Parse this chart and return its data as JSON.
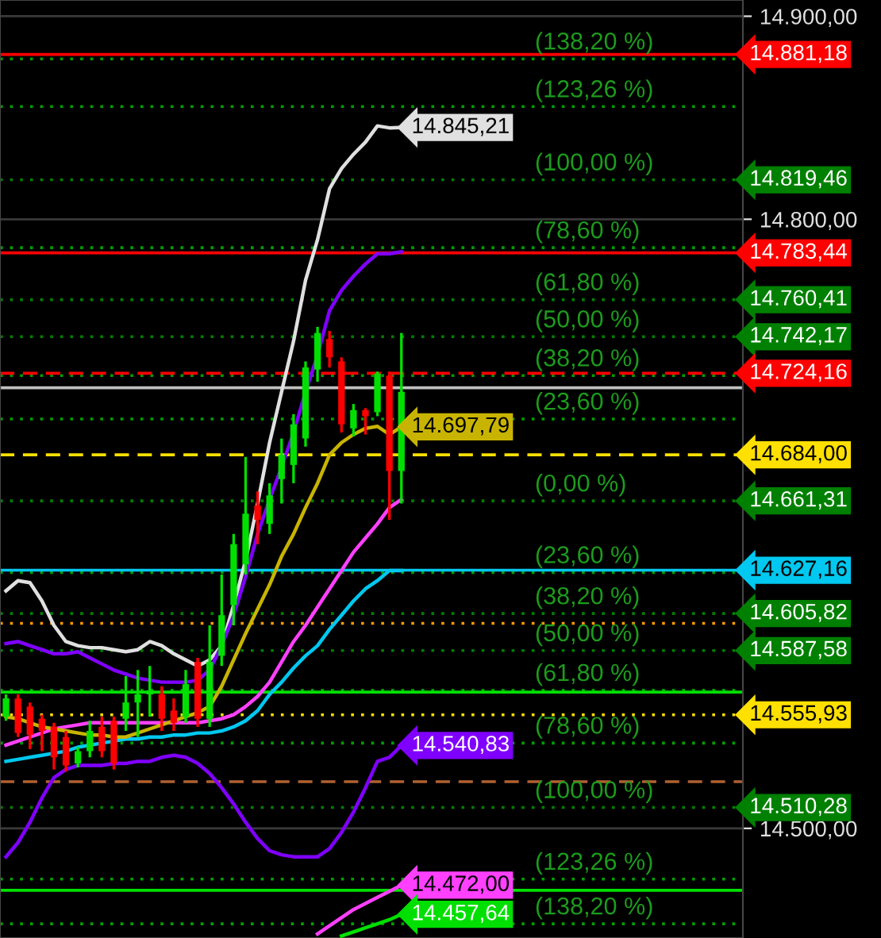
{
  "chart_data": {
    "type": "candlestick",
    "categories": [
      null,
      null,
      null,
      null,
      null,
      null,
      null,
      null,
      null,
      null,
      null,
      null,
      null,
      null,
      null,
      null,
      null,
      null,
      null,
      null,
      null,
      null,
      null,
      null,
      null,
      null,
      null,
      null,
      null,
      null,
      null,
      null,
      null,
      null,
      null,
      null,
      null,
      null,
      null,
      null,
      null,
      null,
      null,
      null,
      null,
      null,
      null,
      null,
      null,
      null,
      null,
      null,
      null,
      null,
      null,
      null,
      null,
      null,
      null,
      null,
      null,
      null
    ],
    "ohlc": [
      [
        14555,
        14566,
        14553,
        14564
      ],
      [
        14564,
        14566,
        14545,
        14547
      ],
      [
        14560,
        14562,
        14539,
        14546
      ],
      [
        14554,
        14556,
        14538,
        14548
      ],
      [
        14550,
        14552,
        14529,
        14535
      ],
      [
        14545,
        14548,
        14528,
        14531
      ],
      [
        14532,
        14540,
        14530,
        14538
      ],
      [
        14538,
        14553,
        14535,
        14548
      ],
      [
        14550,
        14555,
        14535,
        14538
      ],
      [
        14553,
        14555,
        14529,
        14532
      ],
      [
        14554,
        14575,
        14548,
        14562
      ],
      [
        14562,
        14578,
        14545,
        14566
      ],
      [
        14566,
        14580,
        14555,
        14568
      ],
      [
        14566,
        14570,
        14548,
        14554
      ],
      [
        14558,
        14564,
        14548,
        14552
      ],
      [
        14555,
        14578,
        14552,
        14571
      ],
      [
        14582,
        14584,
        14550,
        14554
      ],
      [
        14554,
        14600,
        14550,
        14582
      ],
      [
        14585,
        14625,
        14580,
        14605
      ],
      [
        14610,
        14645,
        14600,
        14640
      ],
      [
        14630,
        14683,
        14625,
        14655
      ],
      [
        14659,
        14666,
        14640,
        14652
      ],
      [
        14650,
        14670,
        14645,
        14664
      ],
      [
        14672,
        14692,
        14660,
        14684
      ],
      [
        14679,
        14704,
        14670,
        14699
      ],
      [
        14692,
        14730,
        14688,
        14727
      ],
      [
        14726,
        14747,
        14720,
        14744
      ],
      [
        14741,
        14745,
        14727,
        14732
      ],
      [
        14730,
        14732,
        14695,
        14699
      ],
      [
        14697,
        14709,
        14693,
        14706
      ],
      [
        14706,
        14707,
        14694,
        14703
      ],
      [
        14705,
        14725,
        14703,
        14724
      ],
      [
        14723,
        14725,
        14652,
        14676
      ],
      [
        14676,
        14744,
        14660,
        14715
      ],
      null,
      null,
      null,
      null,
      null,
      null,
      null,
      null,
      null,
      null,
      null,
      null,
      null,
      null,
      null,
      null,
      null,
      null,
      null,
      null,
      null,
      null,
      null,
      null,
      null,
      null,
      null,
      null
    ],
    "colors": [
      "#00e000",
      "#ff0000",
      "#ff0000",
      "#ff0000",
      "#ff0000",
      "#ff0000",
      "#00e000",
      "#00e000",
      "#ff0000",
      "#ff0000",
      "#00e000",
      "#00e000",
      "#00e000",
      "#ff0000",
      "#ff0000",
      "#00e000",
      "#ff0000",
      "#00e000",
      "#00e000",
      "#00e000",
      "#00e000",
      "#ff0000",
      "#00e000",
      "#00e000",
      "#00e000",
      "#00e000",
      "#00e000",
      "#ff0000",
      "#ff0000",
      "#00e000",
      "#ff0000",
      "#00e000",
      "#ff0000",
      "#00e000",
      null,
      null,
      null,
      null,
      null,
      null,
      null,
      null,
      null,
      null,
      null,
      null,
      null,
      null,
      null,
      null,
      null,
      null,
      null,
      null,
      null,
      null,
      null,
      null,
      null,
      null,
      null,
      null
    ],
    "series": [
      {
        "type": "line",
        "color": "#e0e0e0",
        "values": [
          14617,
          14622,
          14621,
          14612,
          14600,
          14592,
          14590,
          14589,
          14589,
          14588,
          14587,
          14588,
          14592,
          14590,
          14586,
          14583,
          14580,
          14583,
          14590,
          14610,
          14632,
          14660,
          14690,
          14715,
          14740,
          14770,
          14790,
          14815,
          14825,
          14832,
          14838,
          14846,
          14845,
          14845.21,
          null,
          null,
          null,
          null,
          null,
          null,
          null,
          null,
          null,
          null,
          null,
          null,
          null,
          null,
          null,
          null,
          null,
          null,
          null,
          null,
          null,
          null,
          null,
          null,
          null,
          null,
          null,
          null
        ],
        "value_labels": [
          null,
          null,
          null,
          null,
          null,
          null,
          null,
          null,
          null,
          null,
          null,
          null,
          null,
          null,
          null,
          null,
          null,
          null,
          null,
          null,
          null,
          null,
          null,
          null,
          null,
          null,
          null,
          null,
          null,
          null,
          null,
          null,
          null,
          "14.845,21",
          null,
          null,
          null,
          null,
          null,
          null,
          null,
          null,
          null,
          null,
          null,
          null,
          null,
          null,
          null,
          null,
          null,
          null,
          null,
          null,
          null,
          null,
          null,
          null,
          null,
          null,
          null,
          null
        ]
      },
      {
        "type": "line",
        "color": "#8000ff",
        "values": [
          14591,
          14592,
          14590,
          14588,
          14586,
          14586,
          14587,
          14584,
          14581,
          14578,
          14576,
          14574,
          14573,
          14572,
          14572,
          14572,
          14573,
          14578,
          14590,
          14605,
          14624,
          14645,
          14662,
          14678,
          14695,
          14715,
          14733,
          14755,
          14765,
          14772,
          14778,
          14783,
          14783,
          14784,
          null,
          null,
          null,
          null,
          null,
          null,
          null,
          null,
          null,
          null,
          null,
          null,
          null,
          null,
          null,
          null,
          null,
          null,
          null,
          null,
          null,
          null,
          null,
          null,
          null,
          null,
          null,
          null
        ]
      },
      {
        "type": "line",
        "color": "#8000ff",
        "values": [
          14486,
          14493,
          14503,
          14515,
          14525,
          14529,
          14531,
          14531,
          14531,
          14532,
          14532,
          14533,
          14533,
          14535,
          14536,
          14535,
          14532,
          14527,
          14520,
          14512,
          14503,
          14495,
          14489,
          14487,
          14486,
          14486,
          14486,
          14490,
          14498,
          14508,
          14520,
          14533,
          14535,
          14540.83,
          null,
          null,
          null,
          null,
          null,
          null,
          null,
          null,
          null,
          null,
          null,
          null,
          null,
          null,
          null,
          null,
          null,
          null,
          null,
          null,
          null,
          null,
          null,
          null,
          null,
          null,
          null,
          null
        ],
        "value_labels": [
          null,
          null,
          null,
          null,
          null,
          null,
          null,
          null,
          null,
          null,
          null,
          null,
          null,
          null,
          null,
          null,
          null,
          null,
          null,
          null,
          null,
          null,
          null,
          null,
          null,
          null,
          null,
          null,
          null,
          null,
          null,
          null,
          null,
          "14.540,83",
          null,
          null,
          null,
          null,
          null,
          null,
          null,
          null,
          null,
          null,
          null,
          null,
          null,
          null,
          null,
          null,
          null,
          null,
          null,
          null,
          null,
          null,
          null,
          null,
          null,
          null,
          null,
          null
        ]
      },
      {
        "type": "line",
        "color": "#00c8f0",
        "values": [
          14533,
          14534,
          14535,
          14536,
          14537,
          14538,
          14540,
          14541,
          14542,
          14543,
          14544,
          14544,
          14545,
          14545,
          14546,
          14546,
          14547,
          14547,
          14548,
          14550,
          14553,
          14558,
          14566,
          14572,
          14579,
          14585,
          14590,
          14598,
          14605,
          14612,
          14618,
          14622,
          14627,
          14627,
          null,
          null,
          null,
          null,
          null,
          null,
          null,
          null,
          null,
          null,
          null,
          null,
          null,
          null,
          null,
          null,
          null,
          null,
          null,
          null,
          null,
          null,
          null,
          null,
          null,
          null,
          null,
          null
        ]
      },
      {
        "type": "line",
        "color": "#ff40ff",
        "values": [
          14541,
          14543,
          14545,
          14547,
          14549,
          14550,
          14551,
          14552,
          14552,
          14552,
          14552,
          14552,
          14552,
          14552,
          14552,
          14552,
          14552,
          14553,
          14554,
          14556,
          14560,
          14565,
          14572,
          14582,
          14592,
          14600,
          14609,
          14618,
          14627,
          14636,
          14643,
          14650,
          14658,
          14662,
          null,
          null,
          null,
          null,
          null,
          null,
          null,
          null,
          null,
          null,
          null,
          null,
          null,
          null,
          null,
          null,
          null,
          null,
          null,
          null,
          null,
          null,
          null,
          null,
          null,
          null,
          null,
          null
        ]
      },
      {
        "type": "line",
        "color": "#c8b400",
        "values": [
          14555,
          14554,
          14552,
          14550,
          14549,
          14548,
          14547,
          14546,
          14546,
          14545,
          14545,
          14547,
          14549,
          14551,
          14553,
          14555,
          14557,
          14560,
          14570,
          14583,
          14596,
          14608,
          14620,
          14634,
          14645,
          14658,
          14670,
          14684,
          14690,
          14694,
          14697,
          14698,
          14694,
          14697.79,
          null,
          null,
          null,
          null,
          null,
          null,
          null,
          null,
          null,
          null,
          null,
          null,
          null,
          null,
          null,
          null,
          null,
          null,
          null,
          null,
          null,
          null,
          null,
          null,
          null,
          null,
          null,
          null
        ],
        "value_labels": [
          null,
          null,
          null,
          null,
          null,
          null,
          null,
          null,
          null,
          null,
          null,
          null,
          null,
          null,
          null,
          null,
          null,
          null,
          null,
          null,
          null,
          null,
          null,
          null,
          null,
          null,
          null,
          null,
          null,
          null,
          null,
          null,
          null,
          "14.697,79",
          null,
          null,
          null,
          null,
          null,
          null,
          null,
          null,
          null,
          null,
          null,
          null,
          null,
          null,
          null,
          null,
          null,
          null,
          null,
          null,
          null,
          null,
          null,
          null,
          null,
          null,
          null,
          null
        ]
      },
      {
        "type": "line",
        "color": "#ff40ff",
        "values": [
          null,
          null,
          null,
          null,
          null,
          null,
          null,
          null,
          null,
          null,
          null,
          null,
          null,
          null,
          null,
          null,
          null,
          null,
          null,
          null,
          null,
          null,
          null,
          null,
          null,
          null,
          14448,
          14452,
          14456,
          14460,
          14463,
          14466,
          14469,
          14472,
          null,
          null,
          null,
          null,
          null,
          null,
          null,
          null,
          null,
          null,
          null,
          null,
          null,
          null,
          null,
          null,
          null,
          null,
          null,
          null,
          null,
          null,
          null,
          null,
          null,
          null,
          null,
          null
        ],
        "value_labels": [
          null,
          null,
          null,
          null,
          null,
          null,
          null,
          null,
          null,
          null,
          null,
          null,
          null,
          null,
          null,
          null,
          null,
          null,
          null,
          null,
          null,
          null,
          null,
          null,
          null,
          null,
          null,
          null,
          null,
          null,
          null,
          null,
          null,
          "14.472,00",
          null,
          null,
          null,
          null,
          null,
          null,
          null,
          null,
          null,
          null,
          null,
          null,
          null,
          null,
          null,
          null,
          null,
          null,
          null,
          null,
          null,
          null,
          null,
          null,
          null,
          null,
          null,
          null
        ]
      },
      {
        "type": "line",
        "color": "#00e000",
        "values": [
          null,
          null,
          null,
          null,
          null,
          null,
          null,
          null,
          null,
          null,
          null,
          null,
          null,
          null,
          null,
          null,
          null,
          null,
          null,
          null,
          null,
          null,
          null,
          null,
          null,
          null,
          null,
          null,
          14447,
          14449,
          14451,
          14453,
          14455,
          14457.64,
          null,
          null,
          null,
          null,
          null,
          null,
          null,
          null,
          null,
          null,
          null,
          null,
          null,
          null,
          null,
          null,
          null,
          null,
          null,
          null,
          null,
          null,
          null,
          null,
          null,
          null,
          null,
          null
        ],
        "value_labels": [
          null,
          null,
          null,
          null,
          null,
          null,
          null,
          null,
          null,
          null,
          null,
          null,
          null,
          null,
          null,
          null,
          null,
          null,
          null,
          null,
          null,
          null,
          null,
          null,
          null,
          null,
          null,
          null,
          null,
          null,
          null,
          null,
          null,
          "14.457,64",
          null,
          null,
          null,
          null,
          null,
          null,
          null,
          null,
          null,
          null,
          null,
          null,
          null,
          null,
          null,
          null,
          null,
          null,
          null,
          null,
          null,
          null,
          null,
          null,
          null,
          null,
          null,
          null
        ]
      }
    ],
    "ylim": [
      14446,
      14908
    ],
    "yticks": [
      {
        "value": 14900,
        "label": "14.900,00"
      },
      {
        "value": 14800,
        "label": "14.800,00"
      },
      {
        "value": 14500,
        "label": "14.500,00"
      }
    ],
    "grid": "y",
    "tick_labels": "y",
    "ref_lines": [
      {
        "axis": "y",
        "value": 14879,
        "color": "#00a000",
        "line_style": "dotted"
      },
      {
        "axis": "y",
        "value": 14855.5,
        "color": "#00a000",
        "line_style": "dotted"
      },
      {
        "axis": "y",
        "value": 14819.46,
        "label": "14.819,46",
        "color": "#008000",
        "line_style": "dotted"
      },
      {
        "axis": "y",
        "value": 14786,
        "color": "#00a000",
        "line_style": "dotted"
      },
      {
        "axis": "y",
        "value": 14760.41,
        "label": "14.760,41",
        "color": "#008000",
        "line_style": "dotted"
      },
      {
        "axis": "y",
        "value": 14742.17,
        "label": "14.742,17",
        "color": "#008000",
        "line_style": "dotted"
      },
      {
        "axis": "y",
        "value": 14723,
        "color": "#00a000",
        "line_style": "dotted"
      },
      {
        "axis": "y",
        "value": 14701.6,
        "color": "#00a000",
        "line_style": "dotted"
      },
      {
        "axis": "y",
        "value": 14661.31,
        "label": "14.661,31",
        "color": "#008000",
        "line_style": "dotted"
      },
      {
        "axis": "y",
        "value": 14626,
        "color": "#00a000",
        "line_style": "dotted"
      },
      {
        "axis": "y",
        "value": 14605.82,
        "label": "14.605,82",
        "color": "#008000",
        "line_style": "dotted"
      },
      {
        "axis": "y",
        "value": 14587.58,
        "label": "14.587,58",
        "color": "#008000",
        "line_style": "dotted"
      },
      {
        "axis": "y",
        "value": 14568,
        "color": "#00a000",
        "line_style": "dotted"
      },
      {
        "axis": "y",
        "value": 14542,
        "color": "#00a000",
        "line_style": "dotted"
      },
      {
        "axis": "y",
        "value": 14510.28,
        "label": "14.510,28",
        "color": "#008000",
        "line_style": "dotted"
      },
      {
        "axis": "y",
        "value": 14475,
        "color": "#00a000",
        "line_style": "dotted"
      },
      {
        "axis": "y",
        "value": 14453,
        "color": "#00a000",
        "line_style": "dotted"
      },
      {
        "axis": "y",
        "value": 14881.18,
        "label": "14.881,18",
        "color": "#ff0000",
        "line_style": "solid"
      },
      {
        "axis": "y",
        "value": 14783.44,
        "label": "14.783,44",
        "color": "#ff0000",
        "line_style": "solid"
      },
      {
        "axis": "y",
        "value": 14724.16,
        "label": "14.724,16",
        "color": "#ff0000",
        "line_style": "dashed"
      },
      {
        "axis": "y",
        "value": 14717,
        "color": "#c0c0c0",
        "line_style": "solid"
      },
      {
        "axis": "y",
        "value": 14684.0,
        "label": "14.684,00",
        "color": "#ffe000",
        "line_style": "dashed"
      },
      {
        "axis": "y",
        "value": 14627.16,
        "label": "14.627,16",
        "color": "#00c8f0",
        "line_style": "solid"
      },
      {
        "axis": "y",
        "value": 14601,
        "color": "#ff9900",
        "line_style": "dotted"
      },
      {
        "axis": "y",
        "value": 14567.14,
        "color": "#00e000",
        "line_style": "solid"
      },
      {
        "axis": "y",
        "value": 14555.93,
        "label": "14.555,93",
        "color": "#ffe000",
        "line_style": "dotted"
      },
      {
        "axis": "y",
        "value": 14523,
        "color": "#b06030",
        "line_style": "dashed"
      },
      {
        "axis": "y",
        "value": 14469.5,
        "color": "#00e000",
        "line_style": "solid"
      }
    ],
    "annotations": [
      {
        "text": "(138,20 %)",
        "y": 14879
      },
      {
        "text": "(123,26 %)",
        "y": 14855.5
      },
      {
        "text": "(100,00 %)",
        "y": 14819.46
      },
      {
        "text": "(78,60 %)",
        "y": 14786
      },
      {
        "text": "(61,80 %)",
        "y": 14760.41
      },
      {
        "text": "(50,00 %)",
        "y": 14742.17
      },
      {
        "text": "(38,20 %)",
        "y": 14723
      },
      {
        "text": "(23,60 %)",
        "y": 14701.6
      },
      {
        "text": "(0,00 %)",
        "y": 14661.31
      },
      {
        "text": "(23,60 %)",
        "y": 14626
      },
      {
        "text": "(38,20 %)",
        "y": 14605.82
      },
      {
        "text": "(50,00 %)",
        "y": 14587.58
      },
      {
        "text": "(61,80 %)",
        "y": 14568
      },
      {
        "text": "(78,60 %)",
        "y": 14542
      },
      {
        "text": "(100,00 %)",
        "y": 14510.28
      },
      {
        "text": "(123,26 %)",
        "y": 14475
      },
      {
        "text": "(138,20 %)",
        "y": 14453
      }
    ]
  }
}
